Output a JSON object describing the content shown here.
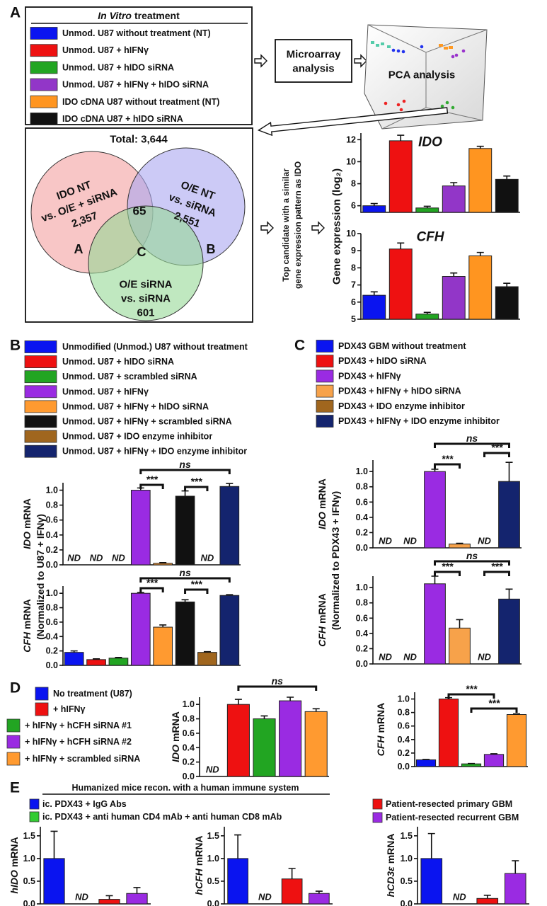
{
  "panel_labels": [
    "A",
    "B",
    "C",
    "D",
    "E"
  ],
  "panel_a": {
    "legend_title": [
      "In Vitro",
      "treatment"
    ],
    "legend": [
      {
        "label": "Unmod. U87 without treatment (NT)",
        "color": "#0a14f0"
      },
      {
        "label": "Unmod. U87 + hIFNγ",
        "color": "#ee1111"
      },
      {
        "label": "Unmod. U87 + hIDO siRNA",
        "color": "#22a522"
      },
      {
        "label": "Unmod. U87 + hIFNγ + hIDO siRNA",
        "color": "#9236c8"
      },
      {
        "label": "IDO cDNA U87 without treatment (NT)",
        "color": "#ff9520"
      },
      {
        "label": "IDO cDNA U87 + hIDO siRNA",
        "color": "#111111"
      }
    ],
    "microarray": [
      "Microarray",
      "analysis"
    ],
    "pca": "PCA analysis",
    "venn": {
      "total": "Total: 3,644",
      "sets": [
        {
          "lines": [
            "IDO NT",
            "vs. O/E + siRNA",
            "2,357"
          ],
          "label": "A"
        },
        {
          "lines": [
            "O/E NT",
            "vs. siRNA",
            "2,551"
          ],
          "label": "B"
        },
        {
          "lines": [
            "O/E siRNA",
            "vs. siRNA",
            "601"
          ],
          "label": "C"
        }
      ],
      "overlap": "65"
    },
    "candidate_note": [
      "Top candidate with a similar",
      "gene expression pattern as IDO"
    ],
    "ylabel": "Gene expression (log₂)"
  },
  "panel_b": {
    "legend": [
      {
        "label": "Unmodified (Unmod.) U87 without treatment",
        "color": "#0a14f0"
      },
      {
        "label": "Unmod. U87 + hIDO siRNA",
        "color": "#ee1111"
      },
      {
        "label": "Unmod. U87 + scrambled siRNA",
        "color": "#22a522"
      },
      {
        "label": "Unmod. U87 + hIFNγ",
        "color": "#9a2be2"
      },
      {
        "label": "Unmod. U87 + hIFNγ + hIDO siRNA",
        "color": "#ff9a30"
      },
      {
        "label": "Unmod. U87 + hIFNγ + scrambled siRNA",
        "color": "#111111"
      },
      {
        "label": "Unmod. U87 + IDO enzyme inhibitor",
        "color": "#a0661e"
      },
      {
        "label": "Unmod. U87 + hIFNγ + IDO enzyme inhibitor",
        "color": "#14246e"
      }
    ],
    "ylabel_note": "(Normalized to U87 + IFNγ)"
  },
  "panel_c": {
    "legend": [
      {
        "label": "PDX43 GBM without treatment",
        "color": "#0a14f0"
      },
      {
        "label": "PDX43 + hIDO siRNA",
        "color": "#ee1111"
      },
      {
        "label": "PDX43 + hIFNγ",
        "color": "#9a2be2"
      },
      {
        "label": "PDX43 + hIFNγ + hIDO siRNA",
        "color": "#f7a24a"
      },
      {
        "label": "PDX43 + IDO enzyme inhibitor",
        "color": "#a0661e"
      },
      {
        "label": "PDX43 + hIFNγ + IDO enzyme inhibitor",
        "color": "#14246e"
      }
    ],
    "ylabel_note": "(Normalized to PDX43 + IFNγ)"
  },
  "panel_d": {
    "legend": [
      {
        "label": "No treatment (U87)",
        "color": "#0a14f0"
      },
      {
        "label": "+ hIFNγ",
        "color": "#ee1111"
      },
      {
        "label": "+ hIFNγ + hCFH siRNA #1",
        "color": "#22a522"
      },
      {
        "label": "+ hIFNγ + hCFH siRNA #2",
        "color": "#9a2be2"
      },
      {
        "label": "+ hIFNγ + scrambled siRNA",
        "color": "#ff9a30"
      }
    ]
  },
  "panel_e": {
    "header": "Humanized mice recon. with a human immune system",
    "legend": [
      {
        "label": "ic. PDX43 + IgG Abs",
        "color": "#0a14f0"
      },
      {
        "label": "ic. PDX43 + anti human CD4 mAb + anti human CD8 mAb",
        "color": "#33cc33"
      },
      {
        "label": "Patient-resected primary GBM",
        "color": "#ee1111"
      },
      {
        "label": "Patient-resected recurrent GBM",
        "color": "#9a2be2"
      }
    ]
  },
  "chart_data": [
    {
      "type": "bar",
      "title": "IDO",
      "colors": [
        "#0a14f0",
        "#ee1111",
        "#22a522",
        "#9236c8",
        "#ff9520",
        "#111111"
      ],
      "values": [
        6.0,
        11.9,
        5.8,
        7.8,
        11.2,
        8.4
      ],
      "errors": [
        0.2,
        0.5,
        0.15,
        0.3,
        0.2,
        0.3
      ],
      "ylim": [
        5.4,
        12.6
      ],
      "yticks": [
        6,
        8,
        10,
        12
      ]
    },
    {
      "type": "bar",
      "title": "CFH",
      "colors": [
        "#0a14f0",
        "#ee1111",
        "#22a522",
        "#9236c8",
        "#ff9520",
        "#111111"
      ],
      "values": [
        6.4,
        9.1,
        5.3,
        7.5,
        8.7,
        6.9
      ],
      "errors": [
        0.2,
        0.35,
        0.1,
        0.2,
        0.2,
        0.2
      ],
      "ylim": [
        5,
        10
      ],
      "yticks": [
        5,
        6,
        7,
        8,
        9,
        10
      ]
    },
    {
      "type": "bar",
      "ylabel": [
        "IDO",
        "mRNA"
      ],
      "colors": [
        null,
        null,
        null,
        "#9a2be2",
        "#ff9a30",
        "#111111",
        null,
        "#14246e"
      ],
      "values": [
        null,
        null,
        null,
        1.0,
        0.02,
        0.92,
        null,
        1.05
      ],
      "errors": [
        null,
        null,
        null,
        0.03,
        0.01,
        0.07,
        null,
        0.04
      ],
      "value_labels": [
        "ND",
        "ND",
        "ND",
        null,
        null,
        null,
        "ND",
        null
      ],
      "ylim": [
        0,
        1.1
      ],
      "yticks": [
        {
          "value": 0,
          "label": "0.0"
        },
        0.2,
        0.4,
        0.6,
        0.8,
        {
          "value": 1,
          "label": "1.0"
        }
      ],
      "annotations": [
        "***",
        "***",
        "ns"
      ]
    },
    {
      "type": "bar",
      "ylabel": [
        "CFH",
        "mRNA"
      ],
      "colors": [
        "#0a14f0",
        "#ee1111",
        "#22a522",
        "#9a2be2",
        "#ff9a30",
        "#111111",
        "#a0661e",
        "#14246e"
      ],
      "values": [
        0.18,
        0.08,
        0.1,
        1.0,
        0.53,
        0.88,
        0.18,
        0.97
      ],
      "errors": [
        0.02,
        0.01,
        0.01,
        0.01,
        0.03,
        0.03,
        0.01,
        0.01
      ],
      "ylim": [
        0,
        1.1
      ],
      "yticks": [
        {
          "value": 0,
          "label": "0.0"
        },
        0.2,
        0.4,
        0.6,
        0.8,
        {
          "value": 1,
          "label": "1.0"
        }
      ],
      "annotations": [
        "***",
        "***",
        "ns"
      ]
    },
    {
      "type": "bar",
      "ylabel": [
        "IDO",
        "mRNA"
      ],
      "colors": [
        null,
        null,
        "#9a2be2",
        "#f7a24a",
        null,
        "#14246e"
      ],
      "values": [
        null,
        null,
        1.0,
        0.05,
        null,
        0.87
      ],
      "errors": [
        null,
        null,
        0.03,
        0.01,
        null,
        0.25
      ],
      "value_labels": [
        "ND",
        "ND",
        null,
        null,
        "ND",
        null
      ],
      "ylim": [
        0,
        1.15
      ],
      "yticks": [
        {
          "value": 0,
          "label": "0.0"
        },
        0.2,
        0.4,
        0.6,
        0.8,
        {
          "value": 1,
          "label": "1.0"
        }
      ],
      "annotations": [
        "***",
        "***",
        "ns"
      ]
    },
    {
      "type": "bar",
      "ylabel": [
        "CFH",
        "mRNA"
      ],
      "colors": [
        null,
        null,
        "#9a2be2",
        "#f7a24a",
        null,
        "#14246e"
      ],
      "values": [
        null,
        null,
        1.05,
        0.47,
        null,
        0.85
      ],
      "errors": [
        null,
        null,
        0.1,
        0.11,
        null,
        0.13
      ],
      "value_labels": [
        "ND",
        "ND",
        null,
        null,
        "ND",
        null
      ],
      "ylim": [
        0,
        1.15
      ],
      "yticks": [
        {
          "value": 0,
          "label": "0.0"
        },
        0.2,
        0.4,
        0.6,
        0.8,
        {
          "value": 1,
          "label": "1.0"
        }
      ],
      "annotations": [
        "***",
        "***",
        "ns"
      ]
    },
    {
      "type": "bar",
      "ylabel": [
        "IDO",
        "mRNA"
      ],
      "colors": [
        null,
        "#ee1111",
        "#22a522",
        "#9a2be2",
        "#ff9a30"
      ],
      "values": [
        null,
        1.0,
        0.8,
        1.05,
        0.9
      ],
      "errors": [
        null,
        0.07,
        0.04,
        0.05,
        0.04
      ],
      "value_labels": [
        "ND",
        null,
        null,
        null,
        null
      ],
      "ylim": [
        0,
        1.1
      ],
      "yticks": [
        {
          "value": 0,
          "label": "0.0"
        },
        0.2,
        0.4,
        0.6,
        0.8,
        {
          "value": 1,
          "label": "1.0"
        }
      ],
      "annotations": [
        "ns"
      ]
    },
    {
      "type": "bar",
      "ylabel": [
        "CFH",
        "mRNA"
      ],
      "colors": [
        "#0a14f0",
        "#ee1111",
        "#22a522",
        "#9a2be2",
        "#ff9a30"
      ],
      "values": [
        0.1,
        1.0,
        0.04,
        0.18,
        0.77
      ],
      "errors": [
        0.005,
        0.02,
        0.005,
        0.01,
        0.01
      ],
      "ylim": [
        0,
        1.1
      ],
      "yticks": [
        {
          "value": 0,
          "label": "0.0"
        },
        0.2,
        0.4,
        0.6,
        0.8,
        {
          "value": 1,
          "label": "1.0"
        }
      ],
      "annotations": [
        "***",
        "***"
      ]
    },
    {
      "type": "bar",
      "ylabel": [
        "hIDO",
        "mRNA"
      ],
      "colors": [
        "#0a14f0",
        null,
        "#ee1111",
        "#9a2be2"
      ],
      "values": [
        1.0,
        null,
        0.1,
        0.23
      ],
      "errors": [
        0.6,
        null,
        0.08,
        0.13
      ],
      "value_labels": [
        null,
        "ND",
        null,
        null
      ],
      "ylim": [
        0,
        1.7
      ],
      "yticks": [
        {
          "value": 0,
          "label": "0.0"
        },
        0.5,
        {
          "value": 1,
          "label": "1.0"
        },
        1.5
      ]
    },
    {
      "type": "bar",
      "ylabel": [
        "hCFH",
        "mRNA"
      ],
      "colors": [
        "#0a14f0",
        null,
        "#ee1111",
        "#9a2be2"
      ],
      "values": [
        1.0,
        null,
        0.55,
        0.23
      ],
      "errors": [
        0.52,
        null,
        0.23,
        0.05
      ],
      "value_labels": [
        null,
        "ND",
        null,
        null
      ],
      "ylim": [
        0,
        1.7
      ],
      "yticks": [
        {
          "value": 0,
          "label": "0.0"
        },
        0.5,
        {
          "value": 1,
          "label": "1.0"
        },
        1.5
      ]
    },
    {
      "type": "bar",
      "ylabel": [
        "hCD3ε",
        "mRNA"
      ],
      "colors": [
        "#0a14f0",
        null,
        "#ee1111",
        "#9a2be2"
      ],
      "values": [
        1.0,
        null,
        0.12,
        0.67
      ],
      "errors": [
        0.55,
        null,
        0.07,
        0.28
      ],
      "value_labels": [
        null,
        "ND",
        null,
        null
      ],
      "ylim": [
        0,
        1.7
      ],
      "yticks": [
        {
          "value": 0,
          "label": "0.0"
        },
        0.5,
        {
          "value": 1,
          "label": "1.0"
        },
        1.5
      ]
    }
  ]
}
